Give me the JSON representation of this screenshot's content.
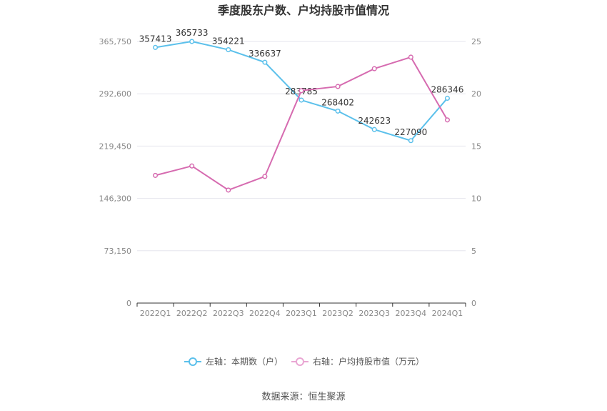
{
  "chart_data": {
    "type": "line",
    "title": "季度股东户数、户均持股市值情况",
    "categories": [
      "2022Q1",
      "2022Q2",
      "2022Q3",
      "2022Q4",
      "2023Q1",
      "2023Q2",
      "2023Q3",
      "2023Q4",
      "2024Q1"
    ],
    "left_axis": {
      "min": 0,
      "max": 365750,
      "ticks": [
        "0",
        "73,150",
        "146,300",
        "219,450",
        "292,600",
        "365,750"
      ]
    },
    "right_axis": {
      "min": 0,
      "max": 25,
      "ticks": [
        "0",
        "5",
        "10",
        "15",
        "20",
        "25"
      ]
    },
    "series": [
      {
        "name": "左轴：本期数（户）",
        "axis": "left",
        "color": "#5bc0eb",
        "values": [
          357413,
          365733,
          354221,
          336637,
          283785,
          268402,
          242623,
          227090,
          286346
        ],
        "labels": [
          "357413",
          "365733",
          "354221",
          "336637",
          "283785",
          "268402",
          "242623",
          "227090",
          "286346"
        ]
      },
      {
        "name": "右轴：户均持股市值（万元）",
        "axis": "right",
        "color": "#d66bb0",
        "values": [
          12.2,
          13.1,
          10.8,
          12.1,
          20.3,
          20.7,
          22.4,
          23.5,
          17.5
        ]
      }
    ],
    "grid": true,
    "legend_position": "bottom"
  },
  "source_text": "数据来源：恒生聚源"
}
